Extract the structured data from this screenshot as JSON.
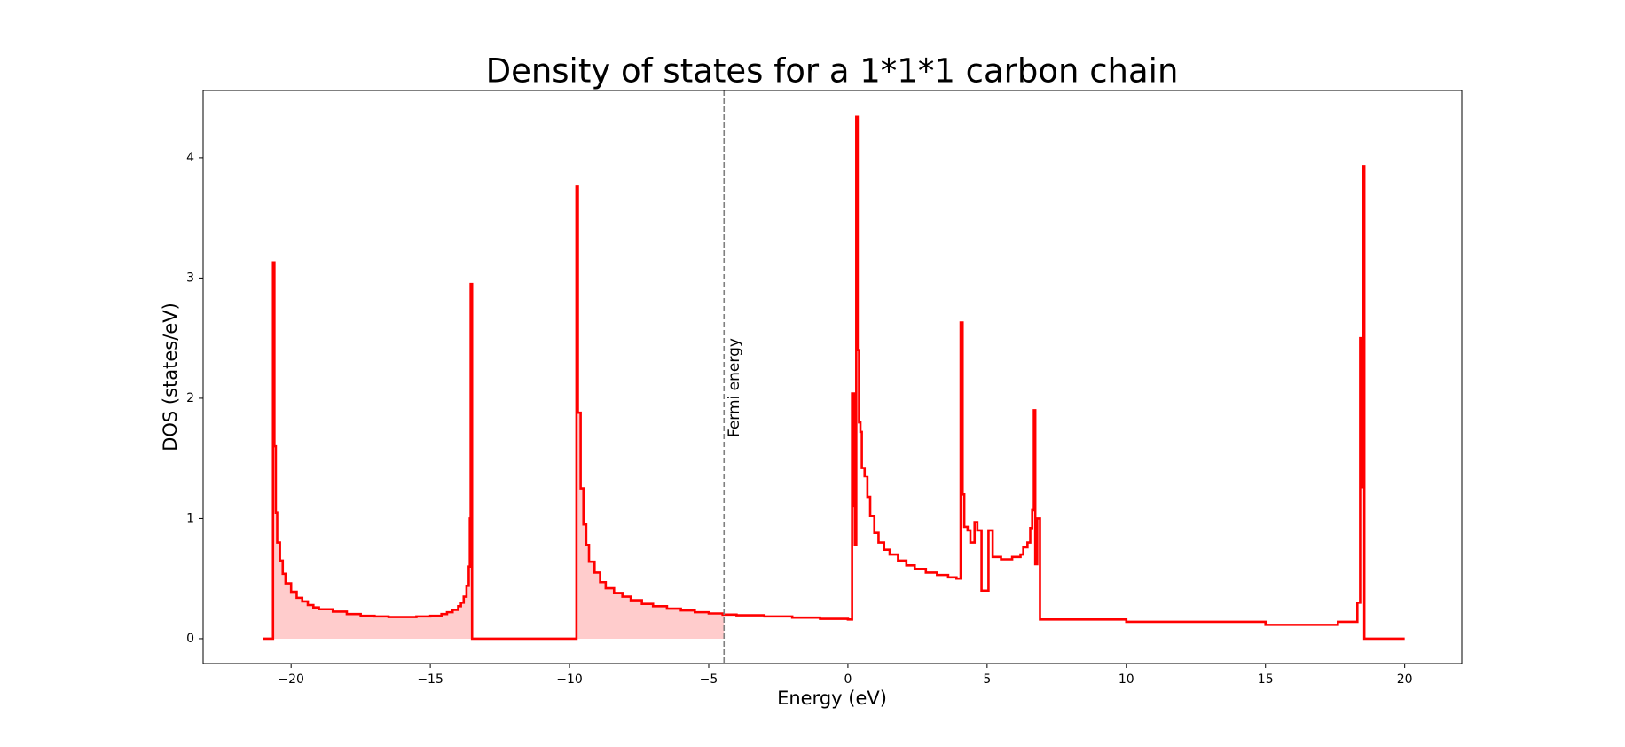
{
  "chart_data": {
    "type": "line",
    "step": "post",
    "title": "Density of states for a 1*1*1 carbon chain",
    "xlabel": "Energy (eV)",
    "ylabel": "DOS (states/eV)",
    "x": [
      -21.0,
      -20.65,
      -20.6,
      -20.55,
      -20.5,
      -20.4,
      -20.3,
      -20.2,
      -20.0,
      -19.8,
      -19.6,
      -19.4,
      -19.2,
      -19.0,
      -18.5,
      -18.0,
      -17.5,
      -17.0,
      -16.5,
      -16.0,
      -15.5,
      -15.0,
      -14.6,
      -14.4,
      -14.2,
      -14.0,
      -13.9,
      -13.8,
      -13.7,
      -13.62,
      -13.58,
      -13.55,
      -13.5,
      -12.0,
      -9.75,
      -9.7,
      -9.6,
      -9.5,
      -9.4,
      -9.3,
      -9.1,
      -8.9,
      -8.7,
      -8.4,
      -8.1,
      -7.8,
      -7.4,
      -7.0,
      -6.5,
      -6.0,
      -5.5,
      -5.0,
      -4.5,
      -4.0,
      -3.0,
      -2.0,
      -1.0,
      0.0,
      0.15,
      0.22,
      0.25,
      0.3,
      0.35,
      0.4,
      0.45,
      0.5,
      0.6,
      0.7,
      0.8,
      0.95,
      1.1,
      1.3,
      1.5,
      1.8,
      2.1,
      2.4,
      2.8,
      3.2,
      3.6,
      3.9,
      4.05,
      4.12,
      4.18,
      4.3,
      4.4,
      4.55,
      4.65,
      4.8,
      5.05,
      5.2,
      5.5,
      5.9,
      6.2,
      6.3,
      6.45,
      6.55,
      6.62,
      6.68,
      6.73,
      6.8,
      6.9,
      10.0,
      15.0,
      17.5,
      17.6,
      18.3,
      18.4,
      18.45,
      18.5,
      18.55,
      20.0
    ],
    "series": [
      {
        "name": "DOS",
        "color": "#ff0000",
        "values": [
          0,
          3.13,
          1.6,
          1.05,
          0.8,
          0.65,
          0.54,
          0.46,
          0.39,
          0.34,
          0.31,
          0.28,
          0.26,
          0.245,
          0.225,
          0.205,
          0.19,
          0.185,
          0.18,
          0.18,
          0.185,
          0.19,
          0.205,
          0.22,
          0.24,
          0.27,
          0.3,
          0.35,
          0.44,
          0.6,
          1.0,
          2.95,
          0,
          0,
          3.76,
          1.88,
          1.25,
          0.95,
          0.78,
          0.64,
          0.55,
          0.47,
          0.42,
          0.38,
          0.35,
          0.32,
          0.29,
          0.27,
          0.25,
          0.235,
          0.22,
          0.21,
          0.2,
          0.195,
          0.185,
          0.175,
          0.165,
          0.16,
          2.04,
          1.1,
          0.78,
          4.34,
          2.4,
          1.8,
          1.72,
          1.42,
          1.35,
          1.18,
          1.02,
          0.88,
          0.8,
          0.74,
          0.7,
          0.65,
          0.61,
          0.58,
          0.55,
          0.53,
          0.51,
          0.5,
          2.63,
          1.2,
          0.93,
          0.9,
          0.8,
          0.97,
          0.9,
          0.4,
          0.9,
          0.68,
          0.66,
          0.68,
          0.7,
          0.76,
          0.8,
          0.92,
          1.07,
          1.9,
          0.62,
          1.0,
          0.16,
          0.14,
          0.115,
          0.115,
          0.14,
          0.3,
          2.5,
          1.26,
          3.93,
          0,
          0
        ]
      }
    ],
    "fill_color": "#ffcccc",
    "fill_below_vline": true,
    "vline": {
      "x": -4.45,
      "label": "Fermi energy",
      "color": "#808080",
      "dashed": true
    },
    "xlim": [
      -23.16,
      22.05
    ],
    "xticks": [
      {
        "value": -20,
        "label": "−20"
      },
      {
        "value": -15,
        "label": "−15"
      },
      {
        "value": -10,
        "label": "−10"
      },
      {
        "value": -5,
        "label": "−5"
      },
      0,
      5,
      10,
      15,
      20
    ],
    "ylim": [
      -0.207,
      4.56
    ],
    "yticks": [
      0,
      1,
      2,
      3,
      4
    ],
    "grid": false
  }
}
